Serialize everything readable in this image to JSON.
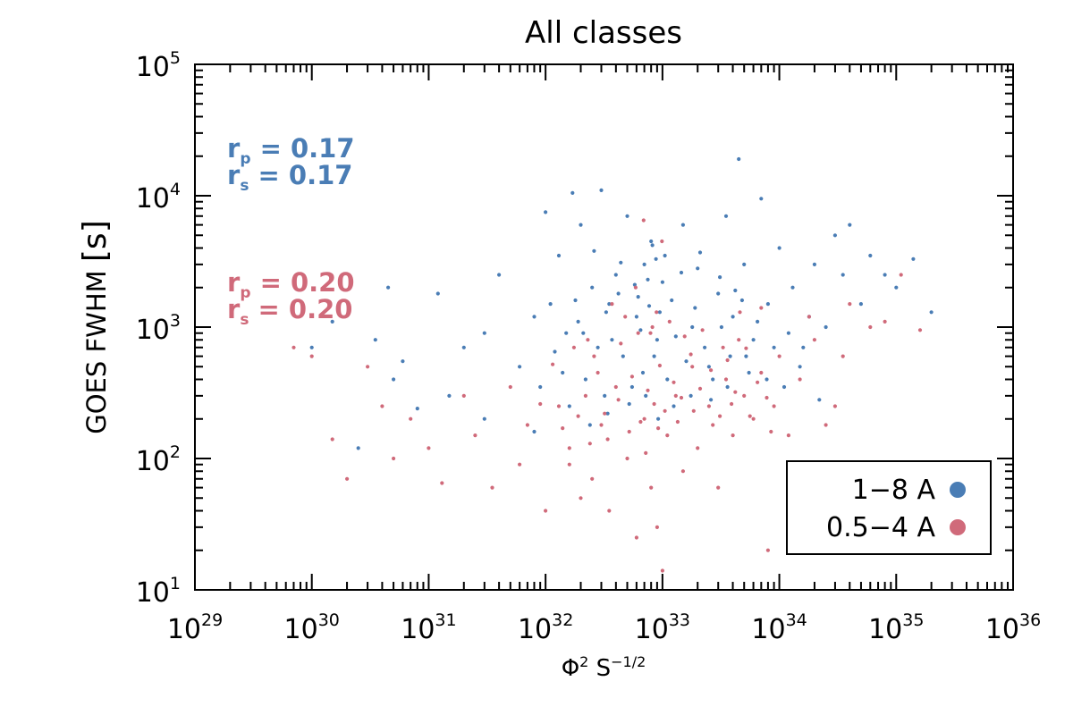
{
  "colors": {
    "series_a": "#4a7db5",
    "series_b": "#d06a7a",
    "axis": "#000000"
  },
  "chart_data": {
    "type": "scatter",
    "title": "All classes",
    "xlabel": {
      "base": "Φ",
      "exp": "2",
      "mid": " S",
      "exp2": "−1/2"
    },
    "ylabel": {
      "text": "GOES FWHM ",
      "unit": "[s]"
    },
    "x_scale": "log",
    "y_scale": "log",
    "xlim": [
      1e+29,
      1e+36
    ],
    "ylim": [
      10,
      100000
    ],
    "x_ticks": [
      {
        "base": "10",
        "exp": "29"
      },
      {
        "base": "10",
        "exp": "30"
      },
      {
        "base": "10",
        "exp": "31"
      },
      {
        "base": "10",
        "exp": "32"
      },
      {
        "base": "10",
        "exp": "33"
      },
      {
        "base": "10",
        "exp": "34"
      },
      {
        "base": "10",
        "exp": "35"
      },
      {
        "base": "10",
        "exp": "36"
      }
    ],
    "y_ticks": [
      {
        "base": "10",
        "exp": "1"
      },
      {
        "base": "10",
        "exp": "2"
      },
      {
        "base": "10",
        "exp": "3"
      },
      {
        "base": "10",
        "exp": "4"
      },
      {
        "base": "10",
        "exp": "5"
      }
    ],
    "grid": false,
    "legend_position": "bottom-right",
    "series": [
      {
        "name": "1−8 A",
        "color": "#4a7db5",
        "stats": {
          "rp_label": "r",
          "rp_sub": "p",
          "rp_value": " = 0.17",
          "rs_label": "r",
          "rs_sub": "s",
          "rs_value": " = 0.17"
        },
        "points": [
          [
            1e+30,
            700
          ],
          [
            1.5e+30,
            1100
          ],
          [
            2.5e+30,
            120
          ],
          [
            3.5e+30,
            800
          ],
          [
            4.5e+30,
            2000
          ],
          [
            5e+30,
            400
          ],
          [
            6e+30,
            550
          ],
          [
            8e+30,
            240
          ],
          [
            1.2e+31,
            1800
          ],
          [
            1.5e+31,
            300
          ],
          [
            2e+31,
            700
          ],
          [
            3e+31,
            900
          ],
          [
            3e+31,
            200
          ],
          [
            4e+31,
            2500
          ],
          [
            6e+31,
            500
          ],
          [
            8e+31,
            1200
          ],
          [
            1e+32,
            7500
          ],
          [
            1.1e+32,
            1500
          ],
          [
            1.3e+32,
            3500
          ],
          [
            1.5e+32,
            900
          ],
          [
            1.7e+32,
            10500
          ],
          [
            2e+32,
            6000
          ],
          [
            2.5e+32,
            2000
          ],
          [
            3e+32,
            11000
          ],
          [
            3.5e+32,
            1500
          ],
          [
            4e+32,
            2500
          ],
          [
            5e+32,
            7000
          ],
          [
            6e+32,
            1200
          ],
          [
            7e+32,
            3000
          ],
          [
            8e+32,
            4500
          ],
          [
            9e+32,
            800
          ],
          [
            1e+33,
            2200
          ],
          [
            1.2e+33,
            1600
          ],
          [
            1.5e+33,
            6000
          ],
          [
            1.8e+33,
            1000
          ],
          [
            2e+33,
            2800
          ],
          [
            2.5e+33,
            500
          ],
          [
            3e+33,
            1800
          ],
          [
            3.5e+33,
            7000
          ],
          [
            4e+33,
            1200
          ],
          [
            4.5e+33,
            19000
          ],
          [
            5e+33,
            3000
          ],
          [
            6e+33,
            800
          ],
          [
            7e+33,
            9500
          ],
          [
            8e+33,
            1500
          ],
          [
            1e+34,
            4000
          ],
          [
            1.3e+34,
            2000
          ],
          [
            1.6e+34,
            700
          ],
          [
            2e+34,
            3000
          ],
          [
            2.5e+34,
            1000
          ],
          [
            3e+34,
            5000
          ],
          [
            3.5e+34,
            2500
          ],
          [
            4e+34,
            6000
          ],
          [
            5e+34,
            1500
          ],
          [
            6e+34,
            3500
          ],
          [
            8e+34,
            2500
          ],
          [
            1e+35,
            2000
          ],
          [
            1.4e+35,
            3300
          ],
          [
            2e+35,
            1300
          ],
          [
            2.2e+32,
            400
          ],
          [
            2.8e+32,
            700
          ],
          [
            3.2e+32,
            300
          ],
          [
            4.2e+32,
            1800
          ],
          [
            5.5e+32,
            350
          ],
          [
            6.5e+32,
            950
          ],
          [
            7.5e+32,
            2300
          ],
          [
            8.5e+32,
            600
          ],
          [
            9.5e+32,
            1300
          ],
          [
            1.1e+33,
            400
          ],
          [
            1.3e+33,
            850
          ],
          [
            1.6e+33,
            550
          ],
          [
            1.9e+33,
            1400
          ],
          [
            2.3e+33,
            700
          ],
          [
            2.7e+33,
            400
          ],
          [
            3.2e+33,
            1000
          ],
          [
            3.8e+33,
            600
          ],
          [
            4.8e+33,
            1600
          ],
          [
            5.5e+33,
            450
          ],
          [
            1.4e+32,
            450
          ],
          [
            1.6e+32,
            250
          ],
          [
            1.9e+32,
            1100
          ],
          [
            2.4e+32,
            180
          ],
          [
            2.6e+32,
            3800
          ],
          [
            3.4e+32,
            220
          ],
          [
            4.4e+32,
            3100
          ],
          [
            5.2e+32,
            260
          ],
          [
            6.2e+32,
            1700
          ],
          [
            7.2e+32,
            300
          ],
          [
            8.2e+32,
            4200
          ],
          [
            9.2e+32,
            200
          ],
          [
            1.05e+33,
            3500
          ],
          [
            1.25e+33,
            250
          ],
          [
            1.45e+33,
            2600
          ],
          [
            1.75e+33,
            300
          ],
          [
            2.1e+33,
            3700
          ],
          [
            2.6e+33,
            280
          ],
          [
            3.1e+33,
            2400
          ],
          [
            3.6e+33,
            350
          ],
          [
            4.2e+33,
            1900
          ],
          [
            5.2e+33,
            600
          ],
          [
            6.5e+33,
            1100
          ],
          [
            7.8e+33,
            400
          ],
          [
            9e+33,
            700
          ],
          [
            1.1e+34,
            350
          ],
          [
            1.2e+34,
            900
          ],
          [
            1.5e+34,
            500
          ],
          [
            1.8e+34,
            1200
          ],
          [
            2.2e+34,
            280
          ],
          [
            8e+31,
            160
          ],
          [
            9e+31,
            350
          ],
          [
            1.2e+32,
            650
          ],
          [
            1.8e+32,
            1600
          ],
          [
            2.1e+32,
            900
          ],
          [
            3.3e+32,
            1300
          ],
          [
            3.7e+32,
            800
          ],
          [
            4.6e+32,
            600
          ],
          [
            5.8e+32,
            2100
          ],
          [
            6.8e+32,
            450
          ],
          [
            7.7e+32,
            1450
          ],
          [
            8.8e+32,
            3300
          ]
        ]
      },
      {
        "name": "0.5−4 A",
        "color": "#d06a7a",
        "stats": {
          "rp_label": "r",
          "rp_sub": "p",
          "rp_value": " = 0.20",
          "rs_label": "r",
          "rs_sub": "s",
          "rs_value": " = 0.20"
        },
        "points": [
          [
            7e+29,
            700
          ],
          [
            1e+30,
            600
          ],
          [
            1.5e+30,
            140
          ],
          [
            2e+30,
            70
          ],
          [
            3e+30,
            500
          ],
          [
            4e+30,
            250
          ],
          [
            5e+30,
            100
          ],
          [
            7e+30,
            200
          ],
          [
            1e+31,
            120
          ],
          [
            1.3e+31,
            65
          ],
          [
            2e+31,
            300
          ],
          [
            2.5e+31,
            150
          ],
          [
            3.5e+31,
            60
          ],
          [
            5e+31,
            350
          ],
          [
            7e+31,
            180
          ],
          [
            1e+32,
            40
          ],
          [
            1.3e+32,
            250
          ],
          [
            1.6e+32,
            120
          ],
          [
            2e+32,
            50
          ],
          [
            2.5e+32,
            70
          ],
          [
            3e+32,
            180
          ],
          [
            3.5e+32,
            40
          ],
          [
            4e+32,
            350
          ],
          [
            5e+32,
            100
          ],
          [
            6e+32,
            25
          ],
          [
            7e+32,
            200
          ],
          [
            8e+32,
            60
          ],
          [
            9e+32,
            30
          ],
          [
            1e+33,
            14
          ],
          [
            1.1e+33,
            150
          ],
          [
            1.3e+33,
            300
          ],
          [
            1.5e+33,
            80
          ],
          [
            1.8e+33,
            500
          ],
          [
            2e+33,
            120
          ],
          [
            2.5e+33,
            250
          ],
          [
            3e+33,
            60
          ],
          [
            3.5e+33,
            400
          ],
          [
            4e+33,
            150
          ],
          [
            4.5e+33,
            800
          ],
          [
            5e+33,
            300
          ],
          [
            6e+33,
            200
          ],
          [
            7e+33,
            450
          ],
          [
            8e+33,
            20
          ],
          [
            9e+33,
            250
          ],
          [
            1e+34,
            600
          ],
          [
            1.2e+34,
            150
          ],
          [
            1.5e+34,
            400
          ],
          [
            1.8e+34,
            1200
          ],
          [
            2e+34,
            800
          ],
          [
            2.5e+34,
            180
          ],
          [
            3e+34,
            250
          ],
          [
            3.5e+34,
            600
          ],
          [
            4e+34,
            1500
          ],
          [
            6e+34,
            1000
          ],
          [
            8e+34,
            1100
          ],
          [
            1.1e+35,
            2500
          ],
          [
            1.6e+35,
            950
          ],
          [
            2.2e+32,
            300
          ],
          [
            2.8e+32,
            450
          ],
          [
            3.2e+32,
            220
          ],
          [
            4.2e+32,
            280
          ],
          [
            5.5e+32,
            420
          ],
          [
            6.5e+32,
            190
          ],
          [
            7.5e+32,
            330
          ],
          [
            8.5e+32,
            260
          ],
          [
            9.5e+32,
            510
          ],
          [
            1.05e+33,
            230
          ],
          [
            1.25e+33,
            380
          ],
          [
            1.45e+33,
            290
          ],
          [
            1.75e+33,
            620
          ],
          [
            2.1e+33,
            340
          ],
          [
            2.6e+33,
            470
          ],
          [
            3.1e+33,
            210
          ],
          [
            3.6e+33,
            560
          ],
          [
            4.2e+33,
            320
          ],
          [
            5.2e+33,
            690
          ],
          [
            6.5e+33,
            380
          ],
          [
            7.8e+33,
            290
          ],
          [
            1.4e+32,
            170
          ],
          [
            1.6e+32,
            90
          ],
          [
            1.9e+32,
            210
          ],
          [
            2.4e+32,
            130
          ],
          [
            2.6e+32,
            600
          ],
          [
            3.4e+32,
            140
          ],
          [
            4.4e+32,
            750
          ],
          [
            5.2e+32,
            160
          ],
          [
            6.2e+32,
            900
          ],
          [
            7.2e+32,
            110
          ],
          [
            8.2e+32,
            1000
          ],
          [
            9.2e+32,
            170
          ],
          [
            1.15e+33,
            1100
          ],
          [
            1.35e+33,
            190
          ],
          [
            1.55e+33,
            850
          ],
          [
            1.85e+33,
            230
          ],
          [
            2.2e+33,
            950
          ],
          [
            2.7e+33,
            180
          ],
          [
            3.3e+33,
            700
          ],
          [
            3.9e+33,
            260
          ],
          [
            4.6e+33,
            1300
          ],
          [
            5.6e+33,
            210
          ],
          [
            7e+33,
            1400
          ],
          [
            8.5e+33,
            160
          ],
          [
            6e+31,
            90
          ],
          [
            9e+31,
            260
          ],
          [
            1.15e+32,
            520
          ],
          [
            1.75e+32,
            700
          ],
          [
            2.3e+32,
            800
          ],
          [
            3.7e+32,
            1500
          ],
          [
            4.8e+32,
            1200
          ],
          [
            5.9e+32,
            2000
          ],
          [
            6.9e+32,
            6500
          ],
          [
            7.9e+32,
            900
          ],
          [
            8.9e+32,
            1300
          ],
          [
            9.9e+32,
            4500
          ]
        ]
      }
    ]
  }
}
